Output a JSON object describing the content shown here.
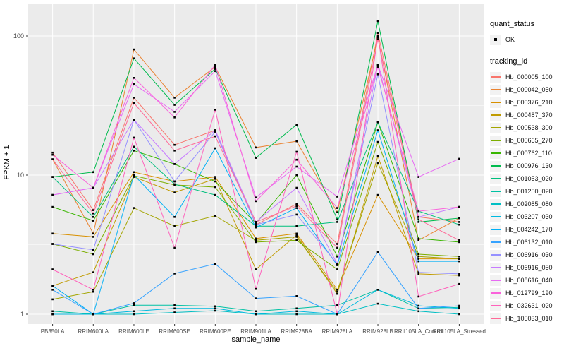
{
  "figure": {
    "background": "#FFFFFF",
    "panel_background": "#EBEBEB",
    "grid_color": "#FFFFFF",
    "tick_label_color": "#4D4D4D",
    "point_color": "#000000"
  },
  "legend": {
    "quant_status": {
      "title": "quant_status",
      "items": [
        {
          "label": "OK",
          "marker": "black-point"
        }
      ]
    },
    "tracking_id": {
      "title": "tracking_id"
    }
  },
  "chart_data": {
    "type": "line",
    "title": "",
    "xlabel": "sample_name",
    "ylabel": "FPKM + 1",
    "y_scale": "log10",
    "ylim": [
      1,
      160
    ],
    "y_major_ticks": [
      1,
      10,
      100
    ],
    "y_minor_gridlines": [
      3.1623,
      31.623
    ],
    "grid": true,
    "legend_position": "right",
    "marker": "black-point",
    "categories": [
      "PB350LA",
      "RRIM600LA",
      "RRIM600LE",
      "RRIM600SE",
      "RRIM600PE",
      "RRIM901LA",
      "RRIM928BA",
      "RRIM928LA",
      "RRIM928LB",
      "RRII105LA_Control",
      "RRII105LA_Stressed"
    ],
    "series": [
      {
        "name": "Hb_000005_100",
        "color": "#F8766D",
        "values": [
          14.5,
          5.6,
          36,
          16.5,
          21,
          4.4,
          6.2,
          3.2,
          105,
          5.0,
          4.6
        ]
      },
      {
        "name": "Hb_000042_050",
        "color": "#EA8331",
        "values": [
          13.0,
          3.8,
          80,
          36,
          60,
          15.8,
          17.5,
          5.4,
          98,
          3.4,
          4.9
        ]
      },
      {
        "name": "Hb_000376_210",
        "color": "#D89000",
        "values": [
          3.8,
          3.6,
          10.5,
          9.0,
          9.7,
          3.5,
          3.8,
          1.5,
          7.2,
          2.5,
          2.5
        ]
      },
      {
        "name": "Hb_000487_370",
        "color": "#C09B00",
        "values": [
          1.6,
          2.0,
          9.7,
          7.5,
          9.4,
          2.1,
          3.7,
          1.4,
          13.7,
          1.95,
          1.9
        ]
      },
      {
        "name": "Hb_000538_300",
        "color": "#A3A500",
        "values": [
          1.28,
          1.45,
          5.8,
          4.3,
          5.1,
          3.4,
          3.6,
          1.45,
          12.2,
          2.6,
          2.5
        ]
      },
      {
        "name": "Hb_000665_270",
        "color": "#7CAE00",
        "values": [
          3.2,
          2.7,
          9.9,
          8.5,
          8.2,
          3.3,
          3.4,
          2.1,
          17.3,
          2.7,
          2.6
        ]
      },
      {
        "name": "Hb_000762_110",
        "color": "#39B600",
        "values": [
          5.9,
          4.7,
          15,
          12,
          9.0,
          4.5,
          10,
          2.6,
          24,
          3.5,
          3.3
        ]
      },
      {
        "name": "Hb_000976_130",
        "color": "#00BB4E",
        "values": [
          9.7,
          10.5,
          69,
          32,
          58,
          13.3,
          23,
          4.8,
          128,
          4.6,
          4.9
        ]
      },
      {
        "name": "Hb_001053_020",
        "color": "#00BF7D",
        "values": [
          9.7,
          5.0,
          16,
          8.6,
          7.2,
          4.3,
          4.3,
          4.6,
          24,
          5.5,
          4.4
        ]
      },
      {
        "name": "Hb_001250_020",
        "color": "#00C1A3",
        "values": [
          1.05,
          1.0,
          1.16,
          1.16,
          1.14,
          1.05,
          1.1,
          1.16,
          1.5,
          1.1,
          1.12
        ]
      },
      {
        "name": "Hb_002085_080",
        "color": "#00BFC4",
        "values": [
          1.0,
          1.0,
          1.0,
          1.03,
          1.06,
          1.0,
          1.0,
          1.0,
          1.19,
          1.05,
          1.0
        ]
      },
      {
        "name": "Hb_003207_030",
        "color": "#00BAE0",
        "values": [
          1.0,
          1.0,
          1.05,
          1.1,
          1.1,
          1.0,
          1.05,
          1.0,
          1.5,
          1.15,
          1.1
        ]
      },
      {
        "name": "Hb_004242_170",
        "color": "#00B0F6",
        "values": [
          1.6,
          1.0,
          10,
          5.0,
          15.6,
          4.2,
          5.8,
          2.25,
          21,
          2.4,
          2.4
        ]
      },
      {
        "name": "Hb_006132_010",
        "color": "#35A2FF",
        "values": [
          1.5,
          1.0,
          1.2,
          1.96,
          2.3,
          1.3,
          1.35,
          1.0,
          2.8,
          1.1,
          1.15
        ]
      },
      {
        "name": "Hb_006916_030",
        "color": "#9590FF",
        "values": [
          3.2,
          2.9,
          25,
          9.0,
          20.5,
          4.4,
          5.2,
          2.3,
          53,
          2.0,
          1.95
        ]
      },
      {
        "name": "Hb_006916_050",
        "color": "#C77CFF",
        "values": [
          7.2,
          8.1,
          25,
          12,
          21,
          4.6,
          8.1,
          2.3,
          62,
          5.0,
          5.9
        ]
      },
      {
        "name": "Hb_008616_040",
        "color": "#E76BF3",
        "values": [
          7.2,
          8.1,
          45,
          28.5,
          56,
          6.9,
          11.5,
          7.0,
          62,
          9.7,
          13.1
        ]
      },
      {
        "name": "Hb_012799_190",
        "color": "#FA62DB",
        "values": [
          14,
          8.1,
          50,
          26,
          62,
          6.5,
          12.9,
          5.8,
          60,
          5.5,
          5.9
        ]
      },
      {
        "name": "Hb_032631_020",
        "color": "#FF62BC",
        "values": [
          2.1,
          1.5,
          18.6,
          3.0,
          29.5,
          1.52,
          14.7,
          1.0,
          100,
          1.34,
          1.65
        ]
      },
      {
        "name": "Hb_105033_010",
        "color": "#FF6A98",
        "values": [
          13,
          5.3,
          33,
          15,
          19,
          4.6,
          6.0,
          3.0,
          95,
          4.8,
          3.4
        ]
      }
    ]
  }
}
